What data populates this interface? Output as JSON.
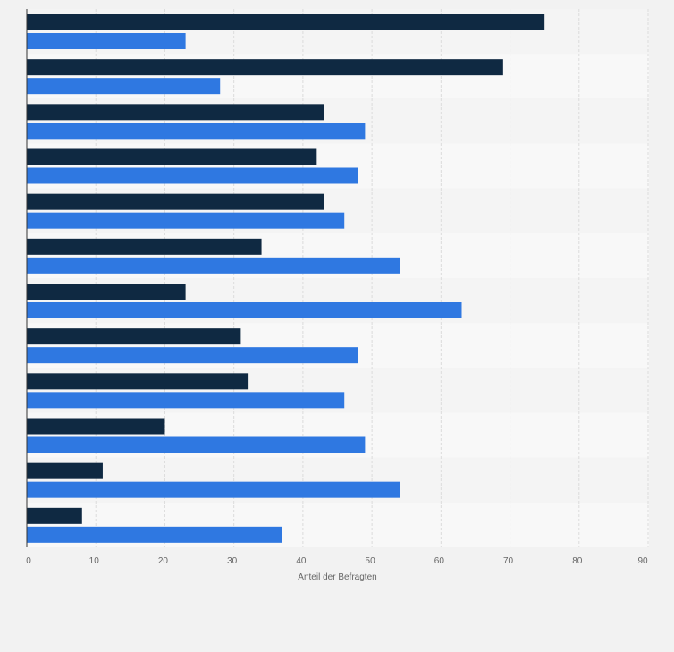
{
  "chart_data": {
    "type": "bar",
    "orientation": "horizontal",
    "title": "",
    "xlabel": "Anteil der Befragten",
    "ylabel": "",
    "xlim": [
      0,
      90
    ],
    "x_ticks": [
      0,
      10,
      20,
      30,
      40,
      50,
      60,
      70,
      80,
      90
    ],
    "x_tick_labels": [
      "0",
      "10",
      "20",
      "30",
      "40",
      "50",
      "60",
      "70",
      "80",
      "90"
    ],
    "grid": true,
    "categories": [
      "",
      "",
      "",
      "",
      "",
      "",
      "",
      "",
      "",
      "",
      "",
      ""
    ],
    "series": [
      {
        "name": "",
        "color": "#0f2942",
        "values": [
          75,
          69,
          43,
          42,
          43,
          34,
          23,
          31,
          32,
          20,
          11,
          8
        ]
      },
      {
        "name": "",
        "color": "#2f78e1",
        "values": [
          23,
          28,
          49,
          48,
          46,
          54,
          63,
          48,
          46,
          49,
          54,
          37
        ]
      }
    ]
  },
  "colors": {
    "background": "#f2f2f2",
    "band_even": "#f4f4f4",
    "band_odd": "#f8f8f8",
    "grid": "#dcdcdc",
    "axis": "#333333"
  }
}
